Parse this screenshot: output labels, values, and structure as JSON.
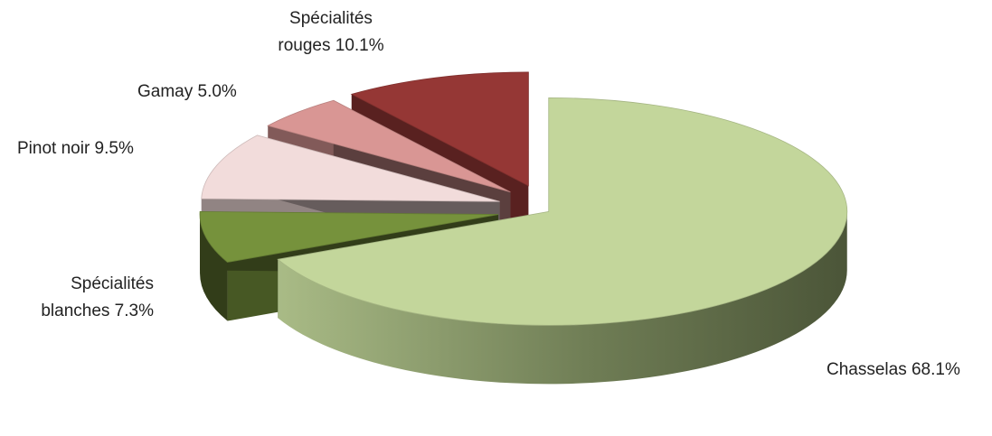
{
  "chart_data": {
    "type": "pie",
    "style": "3d-exploded",
    "slices": [
      {
        "label": "Chasselas",
        "value": 68.1,
        "display": "Chasselas 68.1%",
        "color": "#c3d69b"
      },
      {
        "label": "Spécialités blanches",
        "value": 7.3,
        "display_line1": "Spécialités",
        "display_line2": "blanches 7.3%",
        "color": "#76923c"
      },
      {
        "label": "Pinot noir",
        "value": 9.5,
        "display": "Pinot noir 9.5%",
        "color": "#f2dcdb"
      },
      {
        "label": "Gamay",
        "value": 5.0,
        "display": "Gamay 5.0%",
        "color": "#d99694"
      },
      {
        "label": "Spécialités rouges",
        "value": 10.1,
        "display_line1": "Spécialités",
        "display_line2": "rouges 10.1%",
        "color": "#953735"
      }
    ]
  }
}
